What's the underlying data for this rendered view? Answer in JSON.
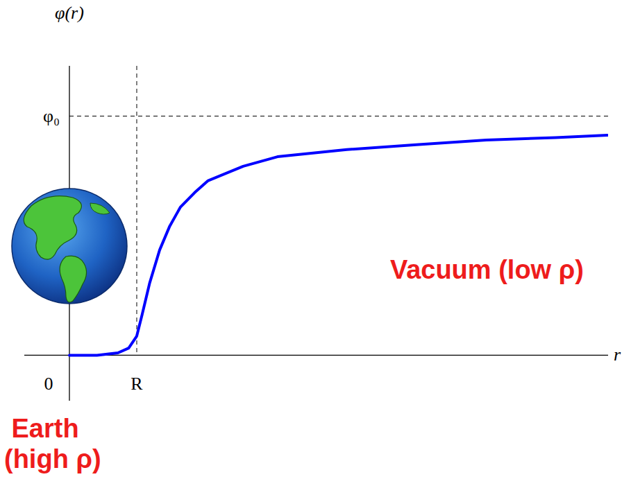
{
  "chart_data": {
    "type": "line",
    "x_label": "r",
    "y_label": "φ(r)",
    "x": [
      0,
      0.41,
      0.72,
      0.88,
      1.0,
      1.08,
      1.19,
      1.34,
      1.49,
      1.65,
      1.86,
      2.06,
      2.58,
      3.09,
      4.12,
      5.15,
      6.19,
      7.22,
      7.99
    ],
    "values": [
      0,
      0.0,
      0.01,
      0.03,
      0.08,
      0.17,
      0.3,
      0.44,
      0.54,
      0.62,
      0.68,
      0.73,
      0.79,
      0.83,
      0.86,
      0.88,
      0.9,
      0.91,
      0.92
    ],
    "color": "#0000ff",
    "xlim": [
      -0.67,
      8.0
    ],
    "ylim": [
      -0.19,
      1.21
    ],
    "xticks": [
      0,
      {
        "value": 1,
        "label": "R"
      }
    ],
    "yticks": [
      {
        "value": 1,
        "label": "φ₀"
      }
    ],
    "grid": false,
    "annotations": [
      {
        "lines": [
          "Vacuum (low ρ)"
        ],
        "x": 6.2,
        "y": 0.36
      },
      {
        "lines": [
          "Earth",
          "(high ρ)"
        ],
        "x": -0.36,
        "y": -0.37
      }
    ]
  }
}
